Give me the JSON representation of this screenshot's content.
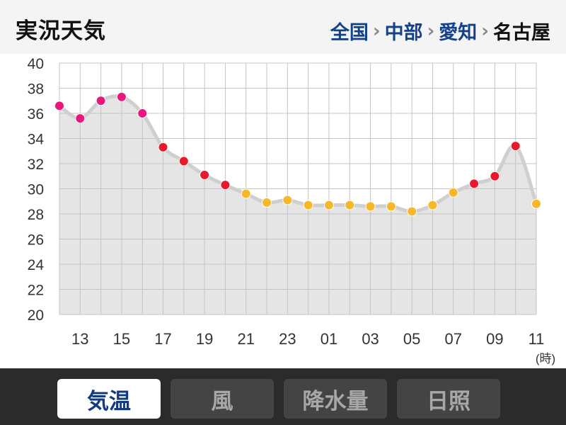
{
  "header": {
    "title": "実況天気",
    "breadcrumb": [
      {
        "label": "全国",
        "link": true
      },
      {
        "label": "中部",
        "link": true
      },
      {
        "label": "愛知",
        "link": true
      },
      {
        "label": "名古屋",
        "link": false
      }
    ],
    "separator": "›"
  },
  "tabs": [
    {
      "label": "気温",
      "active": true
    },
    {
      "label": "風",
      "active": false
    },
    {
      "label": "降水量",
      "active": false
    },
    {
      "label": "日照",
      "active": false
    }
  ],
  "colors": {
    "accent": "#123a80",
    "marker_pink": "#e8187c",
    "marker_red": "#e8192c",
    "marker_orange": "#f6b72a",
    "area_fill": "#e5e5e5",
    "line": "#cfcfcf"
  },
  "chart_data": {
    "type": "area",
    "unit_label": "(時)",
    "ylim": [
      20,
      40
    ],
    "y_ticks": [
      "20",
      "22",
      "24",
      "26",
      "28",
      "30",
      "32",
      "34",
      "36",
      "38",
      "40"
    ],
    "x_tick_labels": [
      "13",
      "15",
      "17",
      "19",
      "21",
      "23",
      "01",
      "03",
      "05",
      "07",
      "09",
      "11"
    ],
    "grid": true,
    "series": [
      {
        "hours": [
          "12",
          "13",
          "14",
          "15",
          "16",
          "17",
          "18",
          "19",
          "20",
          "21",
          "22",
          "23",
          "00",
          "01",
          "02",
          "03",
          "04",
          "05",
          "06",
          "07",
          "08",
          "09",
          "10",
          "11"
        ],
        "values": [
          36.6,
          35.6,
          37.0,
          37.3,
          36.0,
          33.3,
          32.2,
          31.1,
          30.3,
          29.6,
          28.9,
          29.1,
          28.7,
          28.7,
          28.7,
          28.6,
          28.6,
          28.2,
          28.7,
          29.7,
          30.4,
          31.0,
          33.4,
          28.8
        ],
        "marker_colors": [
          "pink",
          "pink",
          "pink",
          "pink",
          "pink",
          "red",
          "red",
          "red",
          "red",
          "orange",
          "orange",
          "orange",
          "orange",
          "orange",
          "orange",
          "orange",
          "orange",
          "orange",
          "orange",
          "orange",
          "red",
          "red",
          "red",
          "orange"
        ]
      }
    ]
  }
}
